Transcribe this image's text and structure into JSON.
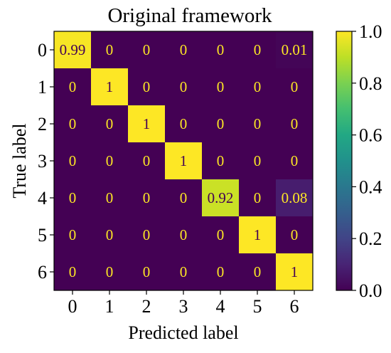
{
  "chart_data": {
    "type": "heatmap",
    "title": "Original framework",
    "xlabel": "Predicted label",
    "ylabel": "True label",
    "x_categories": [
      "0",
      "1",
      "2",
      "3",
      "4",
      "5",
      "6"
    ],
    "y_categories": [
      "0",
      "1",
      "2",
      "3",
      "4",
      "5",
      "6"
    ],
    "values": [
      [
        0.99,
        0,
        0,
        0,
        0,
        0,
        0.01
      ],
      [
        0,
        1,
        0,
        0,
        0,
        0,
        0
      ],
      [
        0,
        0,
        1,
        0,
        0,
        0,
        0
      ],
      [
        0,
        0,
        0,
        1,
        0,
        0,
        0
      ],
      [
        0,
        0,
        0,
        0,
        0.92,
        0,
        0.08
      ],
      [
        0,
        0,
        0,
        0,
        0,
        1,
        0
      ],
      [
        0,
        0,
        0,
        0,
        0,
        0,
        1
      ]
    ],
    "cell_labels": [
      [
        "0.99",
        "0",
        "0",
        "0",
        "0",
        "0",
        "0.01"
      ],
      [
        "0",
        "1",
        "0",
        "0",
        "0",
        "0",
        "0"
      ],
      [
        "0",
        "0",
        "1",
        "0",
        "0",
        "0",
        "0"
      ],
      [
        "0",
        "0",
        "0",
        "1",
        "0",
        "0",
        "0"
      ],
      [
        "0",
        "0",
        "0",
        "0",
        "0.92",
        "0",
        "0.08"
      ],
      [
        "0",
        "0",
        "0",
        "0",
        "0",
        "1",
        "0"
      ],
      [
        "0",
        "0",
        "0",
        "0",
        "0",
        "0",
        "1"
      ]
    ],
    "colormap": "viridis",
    "colorbar": {
      "range": [
        0.0,
        1.0
      ],
      "ticks": [
        "0.0",
        "0.2",
        "0.4",
        "0.6",
        "0.8",
        "1.0"
      ]
    },
    "text_colors": {
      "on_dark": "#fde725",
      "on_light": "#440154"
    }
  }
}
